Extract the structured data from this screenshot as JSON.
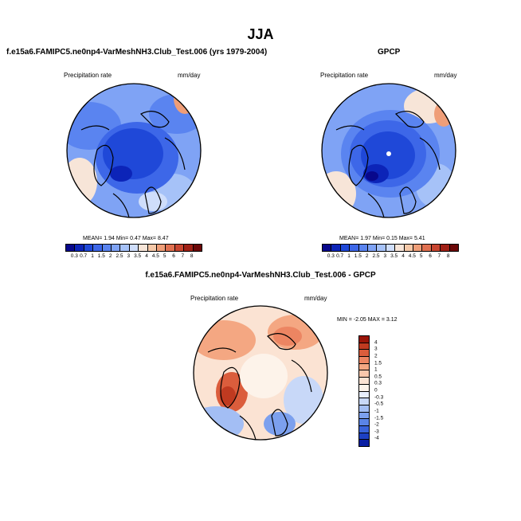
{
  "title": "JJA",
  "panels": [
    {
      "id": "model",
      "subtitle": "f.e15a6.FAMIPC5.ne0np4-VarMeshNH3.Club_Test.006 (yrs 1979-2004)",
      "left_label": "Precipitation rate",
      "right_label": "mm/day",
      "stats": "MEAN=   1.94  Min=   0.47  Max=   8.47"
    },
    {
      "id": "obs",
      "subtitle": "GPCP",
      "left_label": "Precipitation rate",
      "right_label": "mm/day",
      "stats": "MEAN=   1.97  Min=   0.15  Max=   5.41"
    },
    {
      "id": "diff",
      "subtitle": "f.e15a6.FAMIPC5.ne0np4-VarMeshNH3.Club_Test.006 - GPCP",
      "left_label": "Precipitation rate",
      "right_label": "mm/day",
      "stats": "MIN =  -2.05 MAX =   3.12"
    }
  ],
  "colorbars": {
    "precip": {
      "ticks": [
        "0.3",
        "0.7",
        "1",
        "1.5",
        "2",
        "2.5",
        "3",
        "3.5",
        "4",
        "4.5",
        "5",
        "6",
        "7",
        "8"
      ],
      "colors": [
        "#08088c",
        "#0c24b8",
        "#1f48d8",
        "#3d67e8",
        "#5a84f0",
        "#7fa3f5",
        "#a6c2f8",
        "#cfdefb",
        "#f7e5d8",
        "#f5c8a8",
        "#ef9e78",
        "#e07050",
        "#c84530",
        "#a02015",
        "#6c0808"
      ]
    },
    "diff": {
      "ticks": [
        "4",
        "3",
        "2",
        "1.5",
        "1",
        "0.5",
        "0.3",
        "0",
        "-0.3",
        "-0.5",
        "-1",
        "-1.5",
        "-2",
        "-3",
        "-4"
      ],
      "colors": [
        "#9a1508",
        "#c03a20",
        "#db5d3c",
        "#ec8562",
        "#f4a782",
        "#f8c7ac",
        "#fbe3d3",
        "#fdf3ea",
        "#e8effd",
        "#c8d8f8",
        "#a3bef4",
        "#7ca0ee",
        "#5a84e6",
        "#3963da",
        "#1d40c4",
        "#0a1fa3"
      ]
    }
  },
  "maps": {
    "model": {
      "type": "polar-stereographic-filled-contour",
      "field": "Precipitation rate",
      "units": "mm/day",
      "mean": 1.94,
      "min": 0.47,
      "max": 8.47
    },
    "obs": {
      "type": "polar-stereographic-filled-contour",
      "field": "Precipitation rate",
      "units": "mm/day",
      "mean": 1.97,
      "min": 0.15,
      "max": 5.41
    },
    "diff": {
      "type": "polar-stereographic-filled-contour",
      "field": "Precipitation rate difference",
      "units": "mm/day",
      "min": -2.05,
      "max": 3.12
    }
  }
}
